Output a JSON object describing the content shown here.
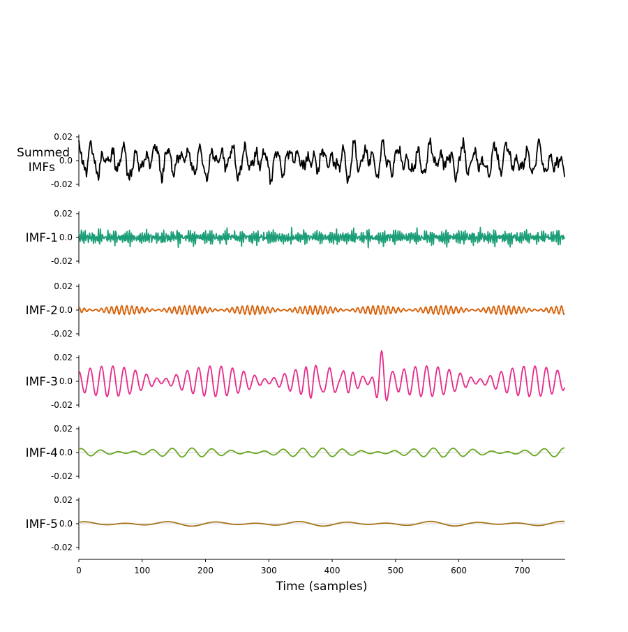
{
  "chart_data": {
    "type": "line",
    "xlabel": "Time (samples)",
    "xlim": [
      0,
      768
    ],
    "x_ticks": [
      0,
      100,
      200,
      300,
      400,
      500,
      600,
      700
    ],
    "n_samples": 768,
    "y_ticks": [
      0.02,
      0.0,
      -0.02
    ],
    "y_tick_labels": [
      "0.02",
      "0.0",
      "-0.02"
    ],
    "ylim": [
      -0.036,
      0.036
    ],
    "series": [
      {
        "name": "Summed IMFs",
        "label_lines": [
          "Summed",
          "IMFs"
        ],
        "color": "#000000",
        "components": [
          {
            "amp": 0.0018,
            "freq": 0.31,
            "phase": 0.4
          },
          {
            "amp": 0.0012,
            "freq": 0.27,
            "phase": 1.7
          },
          {
            "amp": 0.0035,
            "freq": 0.11,
            "phase": 2.1
          },
          {
            "amp": 0.0075,
            "freq": 0.058,
            "phase": 0.8
          },
          {
            "amp": 0.0055,
            "freq": 0.041,
            "phase": 2.6
          },
          {
            "amp": 0.0028,
            "freq": 0.018,
            "phase": 1.2
          },
          {
            "amp": 0.0012,
            "freq": 0.0091,
            "phase": 0.3
          }
        ],
        "bursts": [
          {
            "center": 372,
            "width": 14,
            "amp": 0.016,
            "freq": 0.06
          },
          {
            "center": 420,
            "width": 12,
            "amp": 0.012,
            "freq": 0.062
          },
          {
            "center": 478,
            "width": 10,
            "amp": 0.022,
            "freq": 0.058
          }
        ],
        "scale": 1.0
      },
      {
        "name": "IMF-1",
        "label_lines": [
          "IMF-1"
        ],
        "color": "#1b9e77",
        "components": [
          {
            "amp": 0.003,
            "freq": 0.33,
            "phase": 0.2
          },
          {
            "amp": 0.0022,
            "freq": 0.29,
            "phase": 1.4
          },
          {
            "amp": 0.0018,
            "freq": 0.41,
            "phase": 2.3
          },
          {
            "amp": 0.0012,
            "freq": 0.24,
            "phase": 0.9
          }
        ],
        "bursts": [
          {
            "center": 336,
            "width": 3,
            "amp": 0.01,
            "freq": 0.3
          }
        ],
        "scale": 1.0
      },
      {
        "name": "IMF-2",
        "label_lines": [
          "IMF-2"
        ],
        "color": "#d95f02",
        "components": [
          {
            "amp": 0.0022,
            "freq": 0.121,
            "phase": 0.5
          },
          {
            "amp": 0.0016,
            "freq": 0.131,
            "phase": 2.2
          }
        ],
        "bursts": [],
        "scale": 1.0
      },
      {
        "name": "IMF-3",
        "label_lines": [
          "IMF-3"
        ],
        "color": "#e7298a",
        "components": [
          {
            "amp": 0.0075,
            "freq": 0.0585,
            "phase": 0.8
          },
          {
            "amp": 0.0055,
            "freq": 0.0525,
            "phase": 2.6
          }
        ],
        "bursts": [
          {
            "center": 372,
            "width": 14,
            "amp": 0.016,
            "freq": 0.06
          },
          {
            "center": 420,
            "width": 12,
            "amp": 0.012,
            "freq": 0.062
          },
          {
            "center": 478,
            "width": 10,
            "amp": 0.022,
            "freq": 0.058
          }
        ],
        "scale": 1.0
      },
      {
        "name": "IMF-4",
        "label_lines": [
          "IMF-4"
        ],
        "color": "#66a61e",
        "components": [
          {
            "amp": 0.0022,
            "freq": 0.034,
            "phase": 1.2
          },
          {
            "amp": 0.0016,
            "freq": 0.029,
            "phase": 0.3
          }
        ],
        "bursts": [],
        "scale": 1.0
      },
      {
        "name": "IMF-5",
        "label_lines": [
          "IMF-5"
        ],
        "color": "#a6761d",
        "components": [
          {
            "amp": 0.0012,
            "freq": 0.0145,
            "phase": 1.1
          },
          {
            "amp": 0.0008,
            "freq": 0.0095,
            "phase": 0.2
          }
        ],
        "bursts": [],
        "scale": 1.0
      }
    ],
    "zero_line_color": "#d3d3d3"
  }
}
